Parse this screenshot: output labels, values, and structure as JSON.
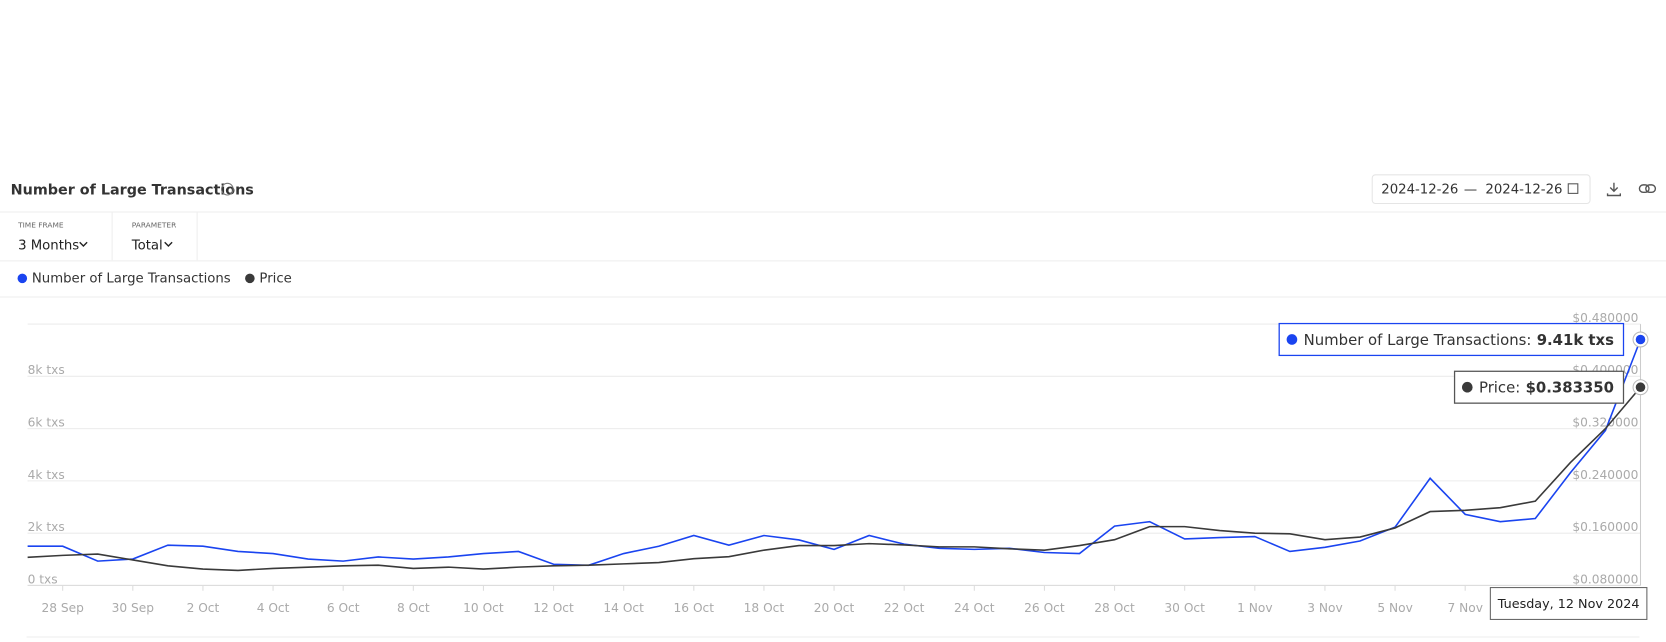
{
  "header": {
    "title": "Number of Large Transactions",
    "date_from": "2024-12-26",
    "date_sep": "—",
    "date_to": "2024-12-26"
  },
  "controls": [
    {
      "label": "TIME FRAME",
      "value": "3 Months"
    },
    {
      "label": "PARAMETER",
      "value": "Total"
    }
  ],
  "chart_data": {
    "type": "line",
    "categories": [
      null,
      "28 Sep",
      null,
      "30 Sep",
      null,
      "2 Oct",
      null,
      "4 Oct",
      null,
      "6 Oct",
      null,
      "8 Oct",
      null,
      "10 Oct",
      null,
      "12 Oct",
      null,
      "14 Oct",
      null,
      "16 Oct",
      null,
      "18 Oct",
      null,
      "20 Oct",
      null,
      "22 Oct",
      null,
      "24 Oct",
      null,
      "26 Oct",
      null,
      "28 Oct",
      null,
      "30 Oct",
      null,
      "1 Nov",
      null,
      "3 Nov",
      null,
      "5 Nov",
      null,
      "7 Nov",
      null,
      null,
      null,
      null,
      null
    ],
    "series": [
      {
        "name": "Number of Large Transactions",
        "color": "#1a44f0",
        "values": [
          1500,
          1500,
          930,
          1010,
          1540,
          1500,
          1300,
          1220,
          1010,
          930,
          1090,
          1010,
          1090,
          1220,
          1300,
          810,
          770,
          1220,
          1500,
          1910,
          1540,
          1910,
          1740,
          1380,
          1910,
          1580,
          1420,
          1380,
          1420,
          1260,
          1220,
          2270,
          2440,
          1780,
          1830,
          1870,
          1300,
          1460,
          1700,
          2230,
          4100,
          2720,
          2440,
          2560,
          4310,
          5930,
          9410
        ]
      },
      {
        "name": "Price",
        "color": "#3a3a3a",
        "axis": "y2",
        "values": [
          0.123,
          0.126,
          0.128,
          0.119,
          0.11,
          0.105,
          0.103,
          0.106,
          0.108,
          0.11,
          0.111,
          0.106,
          0.108,
          0.105,
          0.108,
          0.11,
          0.111,
          0.113,
          0.115,
          0.121,
          0.124,
          0.134,
          0.141,
          0.141,
          0.144,
          0.142,
          0.139,
          0.139,
          0.136,
          0.134,
          0.141,
          0.15,
          0.17,
          0.17,
          0.164,
          0.16,
          0.159,
          0.15,
          0.154,
          0.168,
          0.193,
          0.195,
          0.199,
          0.209,
          0.268,
          0.32,
          0.38335
        ]
      }
    ],
    "ylim": [
      0,
      10000
    ],
    "yticks": [
      {
        "value": 0,
        "label": "0 txs"
      },
      {
        "value": 2000,
        "label": "2k txs"
      },
      {
        "value": 4000,
        "label": "4k txs"
      },
      {
        "value": 6000,
        "label": "6k txs"
      },
      {
        "value": 8000,
        "label": "8k txs"
      }
    ],
    "y2lim": [
      0.08,
      0.48
    ],
    "y2ticks": [
      {
        "value": 0.08,
        "label": "$0.080000"
      },
      {
        "value": 0.16,
        "label": "$0.160000"
      },
      {
        "value": 0.24,
        "label": "$0.240000"
      },
      {
        "value": 0.32,
        "label": "$0.320000"
      },
      {
        "value": 0.4,
        "label": "$0.400000"
      },
      {
        "value": 0.48,
        "label": "$0.480000"
      }
    ],
    "grid": true,
    "tooltip": {
      "date": "Tuesday, 12 Nov 2024",
      "items": [
        {
          "label": "Number of Large Transactions:",
          "value": "9.41k txs"
        },
        {
          "label": "Price:",
          "value": "$0.383350"
        }
      ]
    }
  }
}
